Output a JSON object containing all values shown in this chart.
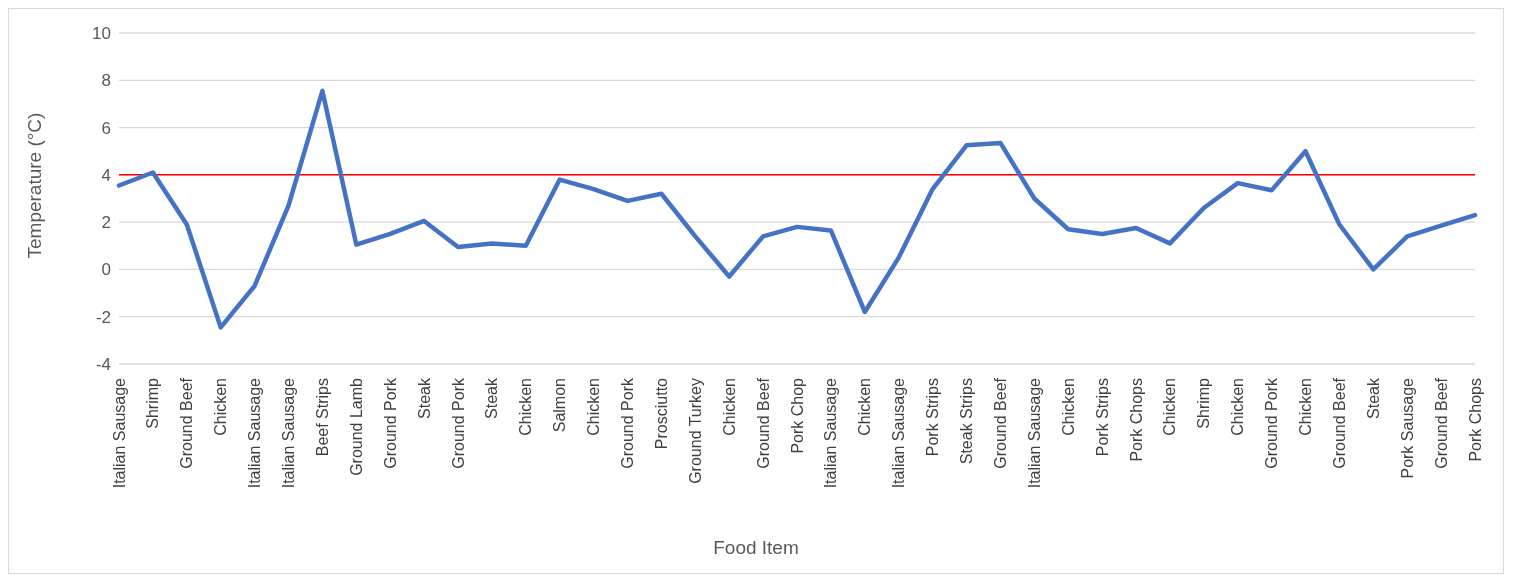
{
  "chart_data": {
    "type": "line",
    "xlabel": "Food Item",
    "ylabel": "Temperature (°C)",
    "categories": [
      "Italian Sausage",
      "Shrimp",
      "Ground Beef",
      "Chicken",
      "Italian Sausage",
      "Italian Sausage",
      "Beef Strips",
      "Ground Lamb",
      "Ground Pork",
      "Steak",
      "Ground Pork",
      "Steak",
      "Chicken",
      "Salmon",
      "Chicken",
      "Ground Pork",
      "Prosciutto",
      "Ground Turkey",
      "Chicken",
      "Ground Beef",
      "Pork Chop",
      "Italian Sausage",
      "Chicken",
      "Italian Sausage",
      "Pork Strips",
      "Steak Strips",
      "Ground Beef",
      "Italian Sausage",
      "Chicken",
      "Pork Strips",
      "Pork Chops",
      "Chicken",
      "Shrimp",
      "Chicken",
      "Ground Pork",
      "Chicken",
      "Ground Beef",
      "Steak",
      "Pork Sausage",
      "Ground Beef",
      "Pork Chops"
    ],
    "series": [
      {
        "color": "#4472c4",
        "values": [
          3.55,
          4.1,
          1.9,
          -2.45,
          -0.7,
          2.7,
          7.55,
          1.05,
          1.5,
          2.05,
          0.95,
          1.1,
          1.0,
          3.8,
          3.4,
          2.9,
          3.2,
          1.4,
          -0.3,
          1.4,
          1.8,
          1.65,
          -1.8,
          0.5,
          3.4,
          5.25,
          5.35,
          3.0,
          1.7,
          1.5,
          1.75,
          1.1,
          2.6,
          3.65,
          3.35,
          5.0,
          1.9,
          0.0,
          1.4,
          1.85,
          2.3
        ]
      }
    ],
    "ylim": [
      -4,
      10
    ],
    "yticks": [
      -4,
      -2,
      0,
      2,
      4,
      6,
      8,
      10
    ],
    "grid": "y",
    "marker": "none",
    "line_style": "solid",
    "ref_lines": [
      {
        "axis": "y",
        "value": 4,
        "color": "#ff0000"
      }
    ]
  }
}
